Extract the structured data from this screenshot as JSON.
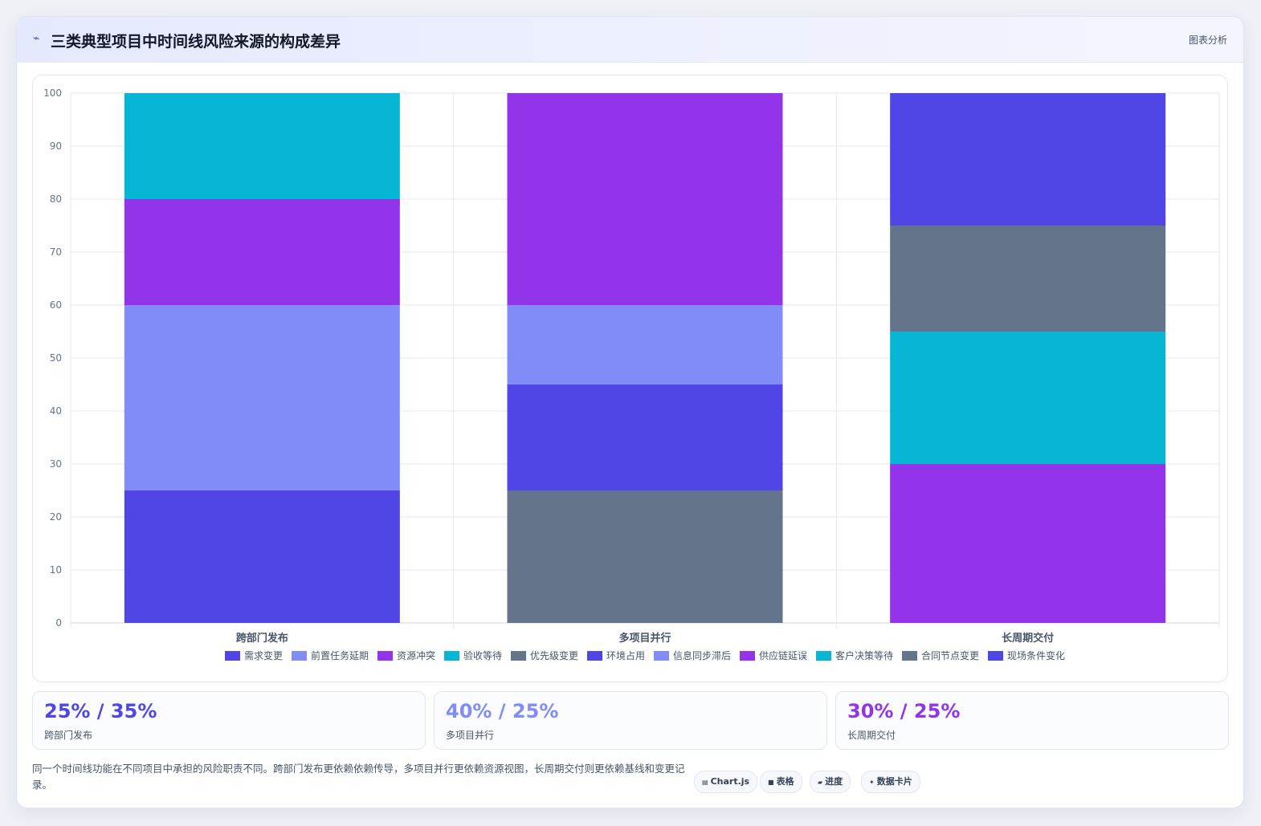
{
  "header": {
    "icon": "chart-line-icon",
    "title": "三类典型项目中时间线风险来源的构成差异",
    "tag": "图表分析"
  },
  "colors": {
    "indigo": "#4f46e5",
    "periwinkle": "#818cf8",
    "purple": "#9333ea",
    "cyan": "#06b6d4",
    "slate": "#64748b"
  },
  "chart_data": {
    "type": "bar",
    "stacked": true,
    "categories": [
      "跨部门发布",
      "多项目并行",
      "长周期交付"
    ],
    "ylim": [
      0,
      100
    ],
    "yticks": [
      0,
      10,
      20,
      30,
      40,
      50,
      60,
      70,
      80,
      90,
      100
    ],
    "grid": true,
    "legend_position": "bottom",
    "series": [
      {
        "name": "需求变更",
        "color": "#4f46e5",
        "values": [
          25,
          0,
          0
        ]
      },
      {
        "name": "前置任务延期",
        "color": "#818cf8",
        "values": [
          35,
          0,
          0
        ]
      },
      {
        "name": "资源冲突",
        "color": "#9333ea",
        "values": [
          20,
          0,
          0
        ]
      },
      {
        "name": "验收等待",
        "color": "#06b6d4",
        "values": [
          20,
          0,
          0
        ]
      },
      {
        "name": "优先级变更",
        "color": "#64748b",
        "values": [
          0,
          25,
          0
        ]
      },
      {
        "name": "环境占用",
        "color": "#4f46e5",
        "values": [
          0,
          20,
          0
        ]
      },
      {
        "name": "信息同步滞后",
        "color": "#818cf8",
        "values": [
          0,
          15,
          0
        ]
      },
      {
        "name": "供应链延误",
        "color": "#9333ea",
        "values": [
          0,
          40,
          30
        ]
      },
      {
        "name": "客户决策等待",
        "color": "#06b6d4",
        "values": [
          0,
          0,
          25
        ]
      },
      {
        "name": "合同节点变更",
        "color": "#64748b",
        "values": [
          0,
          0,
          20
        ]
      },
      {
        "name": "现场条件变化",
        "color": "#4f46e5",
        "values": [
          0,
          0,
          25
        ]
      }
    ]
  },
  "stats": [
    {
      "value": "25% / 35%",
      "label": "跨部门发布",
      "color": "#4f46e5"
    },
    {
      "value": "40% / 25%",
      "label": "多项目并行",
      "color": "#818cf8"
    },
    {
      "value": "30% / 25%",
      "label": "长周期交付",
      "color": "#9333ea"
    }
  ],
  "note": "同一个时间线功能在不同项目中承担的风险职责不同。跨部门发布更依赖依赖传导，多项目并行更依赖资源视图，长周期交付则更依赖基线和变更记录。",
  "pills": [
    {
      "icon": "chart-icon",
      "glyph": "▤",
      "label": "Chart.js"
    },
    {
      "icon": "table-icon",
      "glyph": "■",
      "label": "表格"
    },
    {
      "icon": "progress-icon",
      "glyph": "▰",
      "label": "进度"
    },
    {
      "icon": "sparkle-icon",
      "glyph": "✦",
      "label": "数据卡片"
    }
  ]
}
